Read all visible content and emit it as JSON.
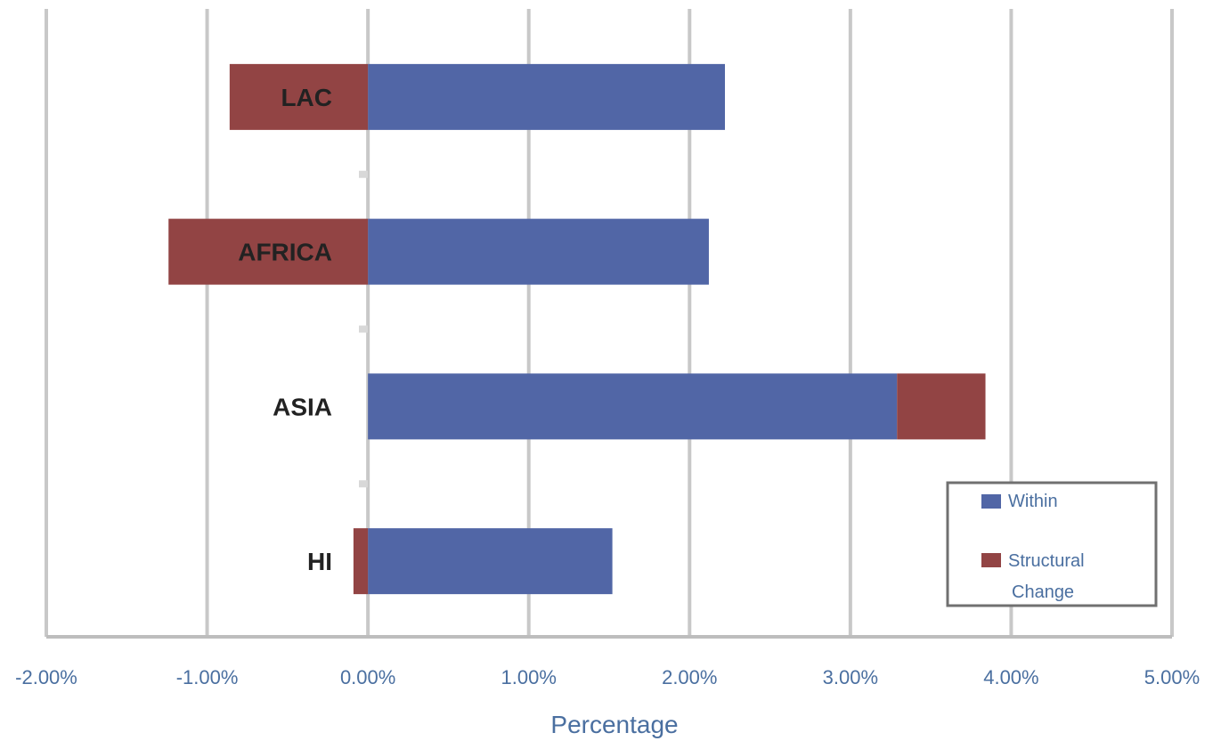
{
  "chart_data": {
    "type": "bar",
    "orientation": "horizontal",
    "stacked": true,
    "categories": [
      "LAC",
      "AFRICA",
      "ASIA",
      "HI"
    ],
    "series": [
      {
        "name": "Within",
        "color": "#5166a6",
        "values": [
          2.22,
          2.12,
          3.29,
          1.52
        ]
      },
      {
        "name": "Structural Change",
        "color": "#924444",
        "values": [
          -0.86,
          -1.24,
          0.55,
          -0.09
        ]
      }
    ],
    "xlabel": "Percentage",
    "xlim": [
      -2.0,
      5.0
    ],
    "x_ticks": [
      -2,
      -1,
      0,
      1,
      2,
      3,
      4,
      5
    ],
    "x_tick_labels": [
      "-2.00%",
      "-1.00%",
      "0.00%",
      "1.00%",
      "2.00%",
      "3.00%",
      "4.00%",
      "5.00%"
    ],
    "grid": true,
    "legend_position": "bottom-right"
  }
}
